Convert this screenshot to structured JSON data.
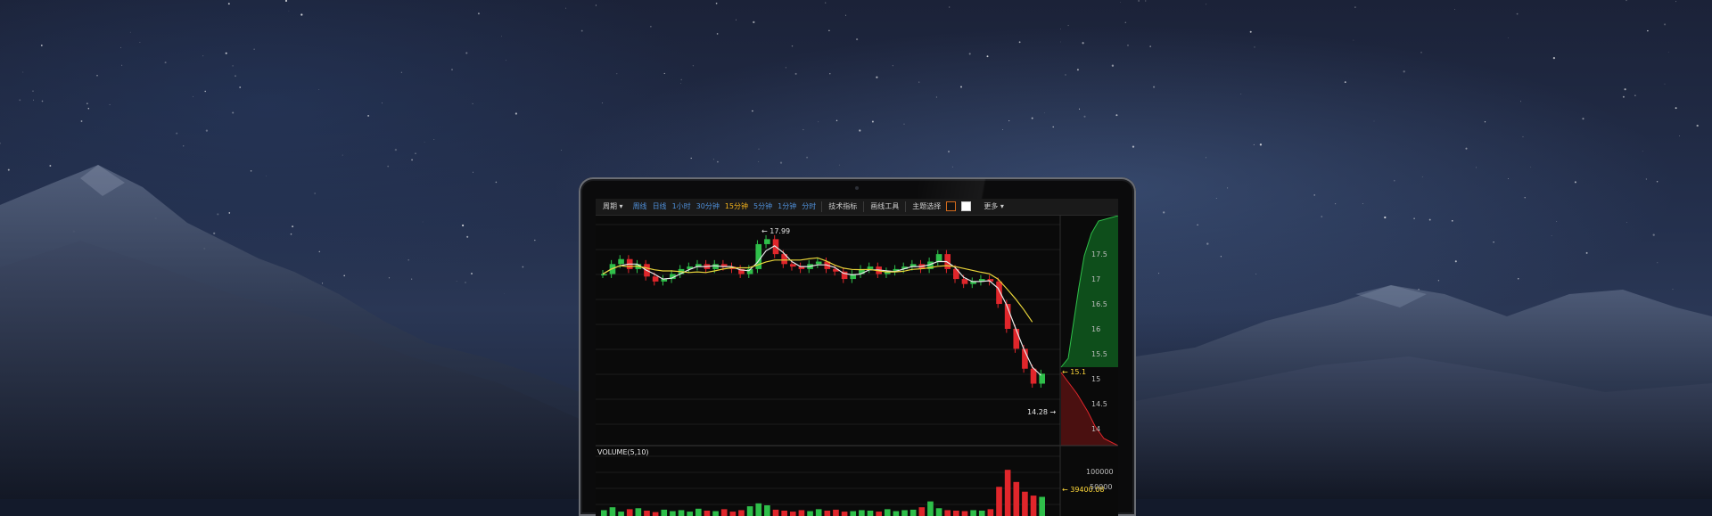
{
  "toolbar": {
    "period_label": "周期",
    "period_caret": "▾",
    "periods": [
      "周线",
      "日线",
      "1小时",
      "30分钟",
      "15分钟",
      "5分钟",
      "1分钟",
      "分时"
    ],
    "active_period": "15分钟",
    "indicators_label": "技术指标",
    "drawing_tools_label": "画线工具",
    "theme_label": "主题选择",
    "more_label": "更多",
    "more_caret": "▾"
  },
  "chart": {
    "price_axis_ticks": [
      "17.5",
      "17",
      "16.5",
      "16",
      "15.5",
      "15",
      "14.5",
      "14"
    ],
    "high_marker": "← 17.99",
    "low_marker": "14.28 →",
    "current_price": "← 15.1",
    "volume_title": "VOLUME(5,10)",
    "volume_axis_ticks": [
      "100000",
      "50000"
    ],
    "current_volume": "← 39400.08"
  },
  "colors": {
    "up": "#2fbf4a",
    "down": "#e0262b",
    "ma_short": "#e8e8e8",
    "ma_long": "#e8d43a",
    "accent_active": "#f3b21b",
    "period_link": "#4f8fd8"
  },
  "chart_data": {
    "type": "candlestick",
    "ylim": [
      13.8,
      18.2
    ],
    "price_values": [
      17.1,
      17.3,
      17.4,
      17.2,
      17.3,
      17.05,
      16.95,
      17.0,
      17.1,
      17.2,
      17.25,
      17.3,
      17.2,
      17.3,
      17.25,
      17.2,
      17.1,
      17.2,
      17.7,
      17.8,
      17.5,
      17.3,
      17.25,
      17.2,
      17.3,
      17.35,
      17.2,
      17.15,
      17.0,
      17.1,
      17.2,
      17.25,
      17.1,
      17.15,
      17.2,
      17.25,
      17.3,
      17.2,
      17.35,
      17.5,
      17.2,
      17.0,
      16.9,
      16.95,
      17.0,
      16.95,
      16.5,
      16.0,
      15.6,
      15.2,
      14.9,
      15.1
    ],
    "volume_values": [
      12000,
      18000,
      9000,
      14000,
      16000,
      11000,
      8000,
      13000,
      10000,
      12000,
      9000,
      15000,
      11000,
      10000,
      14000,
      9000,
      12000,
      20000,
      26000,
      22000,
      13000,
      11000,
      9000,
      12000,
      10000,
      14000,
      11000,
      13000,
      9000,
      10000,
      12000,
      11000,
      9000,
      14000,
      10000,
      12000,
      13000,
      18000,
      30000,
      16000,
      12000,
      11000,
      10000,
      12000,
      11000,
      14000,
      60000,
      95000,
      70000,
      50000,
      42000,
      39400
    ]
  }
}
